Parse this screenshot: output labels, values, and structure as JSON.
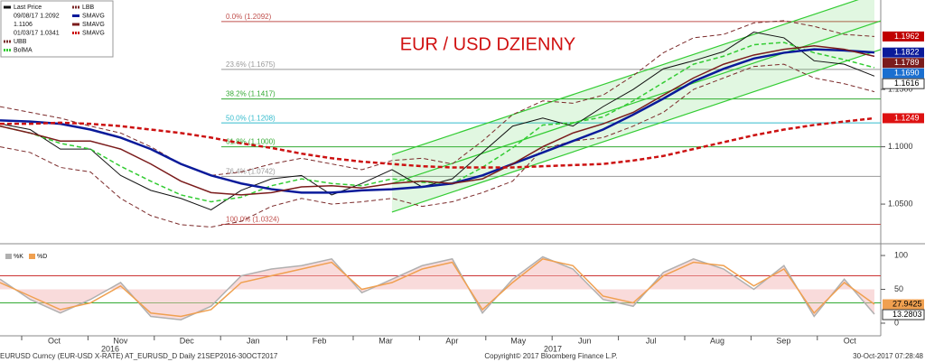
{
  "chart_data": [
    {
      "type": "line",
      "annotation": "EUR / USD DZIENNY",
      "legend_notes": [
        "09/08/17 1.2092",
        "1.1106",
        "01/03/17 1.0341"
      ],
      "xlabels": [
        "Oct",
        "Nov",
        "Dec",
        "Jan",
        "Feb",
        "Mar",
        "Apr",
        "May",
        "Jun",
        "Jul",
        "Aug",
        "Sep",
        "Oct"
      ],
      "years": [
        "2016",
        "2017"
      ],
      "ylim": [
        1.017,
        1.228
      ],
      "yticks": [
        {
          "value": 1.15,
          "label": "1.1500"
        },
        {
          "value": 1.1,
          "label": "1.1000"
        },
        {
          "value": 1.05,
          "label": "1.0500"
        }
      ],
      "series": [
        {
          "name": "Last Price",
          "color": "#111111",
          "dash": false,
          "values": [
            1.12,
            1.115,
            1.098,
            1.098,
            1.075,
            1.062,
            1.055,
            1.045,
            1.062,
            1.072,
            1.075,
            1.058,
            1.068,
            1.08,
            1.065,
            1.072,
            1.095,
            1.118,
            1.125,
            1.118,
            1.135,
            1.15,
            1.168,
            1.175,
            1.183,
            1.2,
            1.195,
            1.175,
            1.172,
            1.1616
          ]
        },
        {
          "name": "UBB",
          "color": "#7b2a2a",
          "dash": true,
          "values": [
            1.135,
            1.13,
            1.125,
            1.118,
            1.112,
            1.1,
            1.085,
            1.075,
            1.078,
            1.085,
            1.09,
            1.085,
            1.08,
            1.088,
            1.09,
            1.085,
            1.105,
            1.128,
            1.14,
            1.138,
            1.145,
            1.162,
            1.182,
            1.195,
            1.198,
            1.208,
            1.21,
            1.205,
            1.198,
            1.1962
          ]
        },
        {
          "name": "BolMA",
          "color": "#33cc33",
          "dash": true,
          "values": [
            1.118,
            1.112,
            1.103,
            1.098,
            1.083,
            1.07,
            1.058,
            1.052,
            1.056,
            1.066,
            1.072,
            1.068,
            1.066,
            1.072,
            1.069,
            1.068,
            1.082,
            1.099,
            1.119,
            1.121,
            1.126,
            1.14,
            1.156,
            1.172,
            1.179,
            1.189,
            1.191,
            1.182,
            1.176,
            1.169
          ]
        },
        {
          "name": "LBB",
          "color": "#7b2a2a",
          "dash": true,
          "values": [
            1.1,
            1.095,
            1.082,
            1.078,
            1.055,
            1.04,
            1.032,
            1.03,
            1.035,
            1.048,
            1.055,
            1.05,
            1.052,
            1.055,
            1.048,
            1.052,
            1.06,
            1.07,
            1.098,
            1.105,
            1.108,
            1.118,
            1.13,
            1.15,
            1.16,
            1.17,
            1.172,
            1.16,
            1.155,
            1.148
          ]
        },
        {
          "name": "SMAVG",
          "color": "#0a1a9a",
          "dash": false,
          "values": [
            1.123,
            1.122,
            1.12,
            1.115,
            1.108,
            1.098,
            1.085,
            1.075,
            1.068,
            1.063,
            1.06,
            1.06,
            1.062,
            1.063,
            1.065,
            1.068,
            1.075,
            1.085,
            1.095,
            1.105,
            1.115,
            1.128,
            1.142,
            1.157,
            1.168,
            1.177,
            1.182,
            1.185,
            1.184,
            1.1822
          ]
        },
        {
          "name": "SMAVG",
          "color": "#7b1c1c",
          "dash": false,
          "values": [
            1.118,
            1.112,
            1.105,
            1.105,
            1.098,
            1.085,
            1.07,
            1.06,
            1.058,
            1.06,
            1.065,
            1.066,
            1.064,
            1.068,
            1.07,
            1.068,
            1.072,
            1.085,
            1.1,
            1.112,
            1.12,
            1.13,
            1.145,
            1.16,
            1.172,
            1.18,
            1.185,
            1.188,
            1.185,
            1.1789
          ]
        },
        {
          "name": "SMAVG",
          "color": "#cc1111",
          "dash": true,
          "values": [
            1.12,
            1.12,
            1.121,
            1.12,
            1.118,
            1.115,
            1.112,
            1.108,
            1.103,
            1.099,
            1.094,
            1.09,
            1.087,
            1.085,
            1.083,
            1.082,
            1.082,
            1.082,
            1.083,
            1.084,
            1.085,
            1.088,
            1.092,
            1.098,
            1.104,
            1.11,
            1.115,
            1.119,
            1.122,
            1.1249
          ]
        }
      ],
      "fib_levels": [
        {
          "label": "0.0% (1.2092)",
          "value": 1.2092,
          "color": "#c0504d"
        },
        {
          "label": "23.6% (1.1675)",
          "value": 1.1675,
          "color": "#999999"
        },
        {
          "label": "38.2% (1.1417)",
          "value": 1.1417,
          "color": "#33aa33"
        },
        {
          "label": "50.0% (1.1208)",
          "value": 1.1208,
          "color": "#33bbcc"
        },
        {
          "label": "61.8% (1.1000)",
          "value": 1.1,
          "color": "#33aa33"
        },
        {
          "label": "76.4% (1.0742)",
          "value": 1.0742,
          "color": "#999999"
        },
        {
          "label": "100.0% (1.0324)",
          "value": 1.0324,
          "color": "#c0504d"
        }
      ],
      "channel": {
        "color": "#33cc33",
        "lines": [
          [
            1.043,
            1.183
          ],
          [
            1.068,
            1.208
          ],
          [
            1.093,
            1.233
          ]
        ]
      },
      "price_labels": [
        {
          "value": 1.1962,
          "label": "1.1962",
          "color": "#c00000"
        },
        {
          "value": 1.1822,
          "label": "1.1822",
          "color": "#0a1a9a"
        },
        {
          "value": 1.1789,
          "label": "1.1789",
          "color": "#7b1c1c"
        },
        {
          "value": 1.169,
          "label": "1.1690",
          "color": "#1a6fd0"
        },
        {
          "value": 1.1616,
          "label": "1.1616",
          "color": "#ffffff"
        },
        {
          "value": 1.1249,
          "label": "1.1249",
          "color": "#dd1111"
        }
      ]
    },
    {
      "type": "line",
      "ylim": [
        -18.7,
        114.7
      ],
      "yticks": [
        100,
        50,
        0
      ],
      "levels": [
        {
          "value": 70,
          "color": "#cc3333"
        },
        {
          "value": 30,
          "color": "#33aa33"
        }
      ],
      "series": [
        {
          "name": "%K",
          "color": "#b0b0b0",
          "values": [
            65,
            35,
            15,
            35,
            60,
            10,
            5,
            25,
            70,
            80,
            85,
            95,
            45,
            65,
            85,
            95,
            15,
            65,
            98,
            80,
            35,
            25,
            75,
            95,
            80,
            50,
            85,
            10,
            65,
            13.2803
          ]
        },
        {
          "name": "%D",
          "color": "#f0a050",
          "values": [
            60,
            40,
            20,
            30,
            55,
            15,
            10,
            20,
            60,
            70,
            80,
            90,
            50,
            60,
            80,
            90,
            20,
            60,
            95,
            85,
            40,
            30,
            70,
            90,
            85,
            55,
            80,
            15,
            60,
            27.9425
          ]
        }
      ],
      "value_labels": [
        {
          "value": 27.9425,
          "color": "#f0a050"
        },
        {
          "value": 13.2803,
          "color": "#ffffff"
        }
      ]
    }
  ],
  "footer": {
    "left": "EURUSD Curncy (EUR-USD X-RATE) AT_EURUSD_D  Daily 21SEP2016-30OCT2017",
    "center": "Copyright© 2017 Bloomberg Finance L.P.",
    "right": "30-Oct-2017 07:28:48"
  }
}
